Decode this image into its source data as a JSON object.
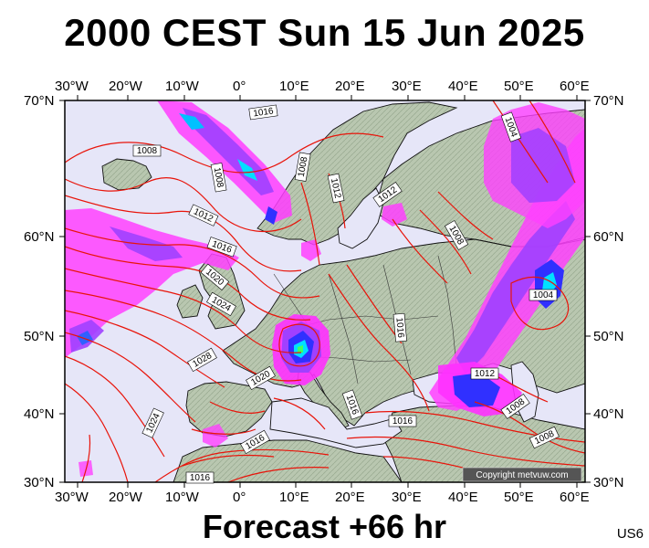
{
  "title": "2000 CEST Sun 15 Jun 2025",
  "footer": "Forecast +66 hr",
  "product_tag": "US6",
  "copyright": "Copyright metvuw.com",
  "map": {
    "lon_labels": [
      "30°W",
      "20°W",
      "10°W",
      "0°",
      "10°E",
      "20°E",
      "30°E",
      "40°E",
      "50°E",
      "60°E"
    ],
    "lat_labels": [
      "70°N",
      "60°N",
      "50°N",
      "40°N",
      "30°N"
    ],
    "isobar_labels": [
      "1016",
      "1008",
      "1008",
      "1008",
      "1012",
      "1012",
      "1012",
      "1016",
      "1020",
      "1024",
      "1028",
      "1024",
      "1016",
      "1016",
      "1020",
      "1016",
      "1016",
      "1008",
      "1012",
      "1004",
      "1004",
      "1008",
      "1008",
      "1016"
    ],
    "colors": {
      "ocean": "#e6e6f8",
      "isobar": "#e8140a",
      "precip_magenta": "#ff00ff",
      "precip_purple": "#a040ff",
      "precip_blue": "#3030ff",
      "precip_cyan": "#00e0ff"
    }
  }
}
